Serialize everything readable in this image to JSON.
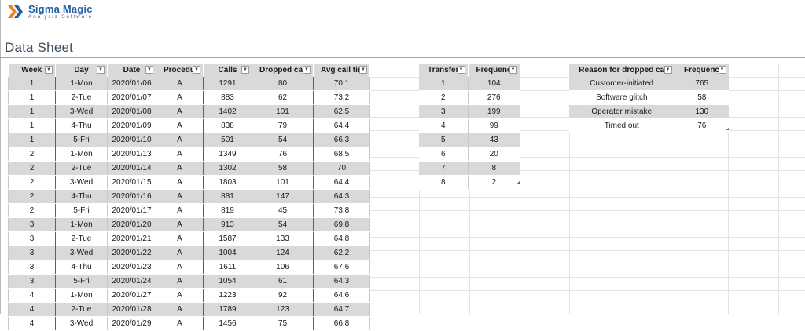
{
  "logo": {
    "name": "Sigma Magic",
    "subtitle": "Analysis Software",
    "mark_color": "#f0821e"
  },
  "sheet_title": "Data Sheet",
  "main_table": {
    "headers": [
      "Week",
      "Day",
      "Date",
      "Procedur",
      "Calls",
      "Dropped call",
      "Avg call tim"
    ],
    "rows": [
      [
        "1",
        "1-Mon",
        "2020/01/06",
        "A",
        "1291",
        "80",
        "70.1"
      ],
      [
        "1",
        "2-Tue",
        "2020/01/07",
        "A",
        "883",
        "62",
        "73.2"
      ],
      [
        "1",
        "3-Wed",
        "2020/01/08",
        "A",
        "1402",
        "101",
        "62.5"
      ],
      [
        "1",
        "4-Thu",
        "2020/01/09",
        "A",
        "838",
        "79",
        "64.4"
      ],
      [
        "1",
        "5-Fri",
        "2020/01/10",
        "A",
        "501",
        "54",
        "66.3"
      ],
      [
        "2",
        "1-Mon",
        "2020/01/13",
        "A",
        "1349",
        "76",
        "68.5"
      ],
      [
        "2",
        "2-Tue",
        "2020/01/14",
        "A",
        "1302",
        "58",
        "70"
      ],
      [
        "2",
        "3-Wed",
        "2020/01/15",
        "A",
        "1803",
        "101",
        "64.4"
      ],
      [
        "2",
        "4-Thu",
        "2020/01/16",
        "A",
        "881",
        "147",
        "64.3"
      ],
      [
        "2",
        "5-Fri",
        "2020/01/17",
        "A",
        "819",
        "45",
        "73.8"
      ],
      [
        "3",
        "1-Mon",
        "2020/01/20",
        "A",
        "913",
        "54",
        "69.8"
      ],
      [
        "3",
        "2-Tue",
        "2020/01/21",
        "A",
        "1587",
        "133",
        "64.8"
      ],
      [
        "3",
        "3-Wed",
        "2020/01/22",
        "A",
        "1004",
        "124",
        "62.2"
      ],
      [
        "3",
        "4-Thu",
        "2020/01/23",
        "A",
        "1611",
        "106",
        "67.6"
      ],
      [
        "3",
        "5-Fri",
        "2020/01/24",
        "A",
        "1054",
        "61",
        "64.3"
      ],
      [
        "4",
        "1-Mon",
        "2020/01/27",
        "A",
        "1223",
        "92",
        "64.6"
      ],
      [
        "4",
        "2-Tue",
        "2020/01/28",
        "A",
        "1789",
        "123",
        "64.7"
      ],
      [
        "4",
        "3-Wed",
        "2020/01/29",
        "A",
        "1456",
        "75",
        "66.8"
      ]
    ]
  },
  "transfer_table": {
    "headers": [
      "Transfer",
      "Frequenc"
    ],
    "rows": [
      [
        "1",
        "104"
      ],
      [
        "2",
        "276"
      ],
      [
        "3",
        "199"
      ],
      [
        "4",
        "99"
      ],
      [
        "5",
        "43"
      ],
      [
        "6",
        "20"
      ],
      [
        "7",
        "8"
      ],
      [
        "8",
        "2"
      ]
    ]
  },
  "reason_table": {
    "headers": [
      "Reason for dropped ca",
      "Frequenc"
    ],
    "rows": [
      [
        "Customer-initiated",
        "765"
      ],
      [
        "Software glitch",
        "58"
      ],
      [
        "Operator mistake",
        "130"
      ],
      [
        "Timed out",
        "76"
      ]
    ]
  },
  "dropdown_icon": "filter-dropdown-icon"
}
